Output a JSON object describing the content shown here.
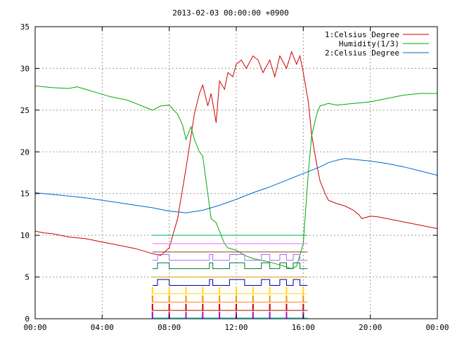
{
  "chart_data": {
    "type": "line",
    "title": "2013-02-03 00:00:00 +0900",
    "xlabel": "",
    "ylabel": "",
    "x_unit": "hours",
    "xlim": [
      0,
      24
    ],
    "ylim": [
      0,
      35
    ],
    "grid": true,
    "legend_position": "top-right",
    "x_ticks": [
      {
        "value": 0,
        "label": "00:00"
      },
      {
        "value": 4,
        "label": "04:00"
      },
      {
        "value": 8,
        "label": "08:00"
      },
      {
        "value": 12,
        "label": "12:00"
      },
      {
        "value": 16,
        "label": "16:00"
      },
      {
        "value": 20,
        "label": "20:00"
      },
      {
        "value": 24,
        "label": "00:00"
      }
    ],
    "y_ticks": [
      {
        "value": 0,
        "label": "0"
      },
      {
        "value": 5,
        "label": "5"
      },
      {
        "value": 10,
        "label": "10"
      },
      {
        "value": 15,
        "label": "15"
      },
      {
        "value": 20,
        "label": "20"
      },
      {
        "value": 25,
        "label": "25"
      },
      {
        "value": 30,
        "label": "30"
      },
      {
        "value": 35,
        "label": "35"
      }
    ],
    "series": [
      {
        "name": "1:Celsius Degree",
        "color": "#cc0000",
        "x": [
          0,
          0.5,
          1,
          1.5,
          2,
          2.5,
          3,
          3.5,
          4,
          4.5,
          5,
          5.5,
          6,
          6.5,
          7,
          7.5,
          8,
          8.5,
          9,
          9.5,
          9.8,
          10,
          10.3,
          10.5,
          10.8,
          11,
          11.3,
          11.5,
          11.8,
          12,
          12.3,
          12.6,
          13,
          13.3,
          13.6,
          14,
          14.3,
          14.6,
          15,
          15.3,
          15.6,
          15.8,
          16,
          16.3,
          16.5,
          16.8,
          17,
          17.3,
          17.5,
          18,
          18.5,
          19,
          19.3,
          19.5,
          20,
          20.5,
          21,
          21.5,
          22,
          22.5,
          23,
          23.5,
          24
        ],
        "values": [
          10.5,
          10.3,
          10.2,
          10.0,
          9.8,
          9.7,
          9.6,
          9.4,
          9.2,
          9.0,
          8.8,
          8.6,
          8.4,
          8.1,
          7.8,
          7.6,
          8.5,
          12.0,
          18.0,
          24.5,
          27.0,
          28.0,
          25.5,
          27.0,
          23.5,
          28.5,
          27.5,
          29.5,
          29.0,
          30.5,
          31.0,
          30.0,
          31.5,
          31.0,
          29.5,
          31.0,
          29.0,
          31.5,
          30.0,
          32.0,
          30.5,
          31.5,
          29.5,
          26.0,
          22.0,
          18.5,
          16.5,
          15.0,
          14.2,
          13.8,
          13.5,
          13.0,
          12.5,
          12.0,
          12.3,
          12.2,
          12.0,
          11.8,
          11.6,
          11.4,
          11.2,
          11.0,
          10.8
        ]
      },
      {
        "name": "Humidity(1/3)",
        "color": "#00aa00",
        "x": [
          0,
          1,
          2,
          2.5,
          3,
          3.5,
          4,
          4.5,
          5,
          5.5,
          6,
          6.5,
          7,
          7.5,
          8,
          8.5,
          8.8,
          9,
          9.3,
          9.5,
          9.8,
          10,
          10.3,
          10.5,
          10.8,
          11,
          11.3,
          11.5,
          12,
          12.5,
          13,
          13.5,
          14,
          14.5,
          15,
          15.3,
          15.6,
          16,
          16.3,
          16.5,
          16.8,
          17,
          17.5,
          18,
          18.5,
          19,
          19.5,
          20,
          20.5,
          21,
          21.5,
          22,
          22.5,
          23,
          23.5,
          24
        ],
        "values": [
          27.9,
          27.7,
          27.6,
          27.8,
          27.5,
          27.2,
          26.9,
          26.6,
          26.4,
          26.2,
          25.8,
          25.4,
          25.0,
          25.5,
          25.6,
          24.5,
          23.2,
          21.5,
          23.0,
          21.5,
          20.0,
          19.5,
          15.0,
          12.0,
          11.5,
          10.5,
          9.0,
          8.5,
          8.2,
          7.6,
          7.2,
          7.0,
          6.8,
          6.5,
          6.2,
          6.0,
          6.3,
          9.0,
          17.5,
          22.0,
          24.5,
          25.5,
          25.8,
          25.6,
          25.7,
          25.8,
          25.9,
          26.0,
          26.2,
          26.4,
          26.6,
          26.8,
          26.9,
          27.0,
          27.0,
          27.0
        ]
      },
      {
        "name": "2:Celsius Degree",
        "color": "#0066cc",
        "x": [
          0,
          1,
          2,
          3,
          4,
          5,
          6,
          7,
          8,
          9,
          10,
          11,
          12,
          13,
          14,
          15,
          16,
          17,
          17.5,
          18,
          18.5,
          19,
          20,
          21,
          22,
          23,
          24
        ],
        "values": [
          15.1,
          14.9,
          14.7,
          14.5,
          14.2,
          13.9,
          13.6,
          13.3,
          12.9,
          12.7,
          13.0,
          13.6,
          14.3,
          15.1,
          15.8,
          16.6,
          17.4,
          18.2,
          18.7,
          19.0,
          19.2,
          19.1,
          18.9,
          18.6,
          18.2,
          17.7,
          17.2
        ]
      }
    ],
    "status_rows": [
      {
        "color": "#00bb55",
        "type": "flat",
        "value": 10.0
      },
      {
        "color": "#ff66ff",
        "type": "flat",
        "value": 9.0
      },
      {
        "color": "#8b4513",
        "type": "flat",
        "value": 8.0
      },
      {
        "color": "#aa66ff",
        "type": "steps",
        "value": 7.0
      },
      {
        "color": "#007733",
        "type": "steps",
        "value": 6.0
      },
      {
        "color": "#ddaa00",
        "type": "flat",
        "value": 5.0
      },
      {
        "color": "#000099",
        "type": "steps",
        "value": 4.0
      },
      {
        "color": "#ffdd00",
        "type": "pulses",
        "value": 3.0
      },
      {
        "color": "#ff8800",
        "type": "pulses",
        "value": 2.0
      },
      {
        "color": "#cc0000",
        "type": "pulses",
        "value": 1.0
      },
      {
        "color": "#00dddd",
        "type": "pulses",
        "value": 0.1
      },
      {
        "color": "#cc00cc",
        "type": "pulses",
        "value": 0.0
      }
    ]
  }
}
